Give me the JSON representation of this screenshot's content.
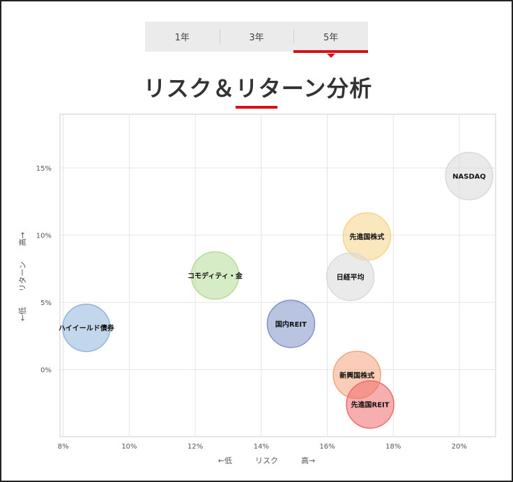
{
  "tabs": [
    {
      "label": "1年",
      "active": false
    },
    {
      "label": "3年",
      "active": false
    },
    {
      "label": "5年",
      "active": true
    }
  ],
  "title": "リスク＆リターン分析",
  "colors": {
    "accent": "#d9101a"
  },
  "chart_data": {
    "type": "scatter",
    "x": {
      "label": "←低　　　リスク　　　高→",
      "ticks": [
        "8%",
        "10%",
        "12%",
        "14%",
        "16%",
        "18%",
        "20%"
      ],
      "range": [
        7.9,
        21.1
      ]
    },
    "y": {
      "label": "←低　　リターン　　高→",
      "ticks": [
        "0%",
        "5%",
        "10%",
        "15%"
      ],
      "range": [
        -5.0,
        19.0
      ]
    },
    "grid": true,
    "points": [
      {
        "name": "NASDAQ",
        "x": 20.3,
        "y": 14.4,
        "color": "#d9d9d9"
      },
      {
        "name": "先進国株式",
        "x": 17.2,
        "y": 9.9,
        "color": "#f7d488"
      },
      {
        "name": "日経平均",
        "x": 16.7,
        "y": 6.9,
        "color": "#d9d9d9"
      },
      {
        "name": "コモディティ・金",
        "x": 12.6,
        "y": 7.0,
        "color": "#b3dc98"
      },
      {
        "name": "国内REIT",
        "x": 14.9,
        "y": 3.4,
        "color": "#7f93c8"
      },
      {
        "name": "ハイイールド債券",
        "x": 8.7,
        "y": 3.1,
        "color": "#8fb4dc"
      },
      {
        "name": "新興国株式",
        "x": 16.9,
        "y": -0.4,
        "color": "#f4a47e"
      },
      {
        "name": "先進国REIT",
        "x": 17.3,
        "y": -2.6,
        "color": "#ef6b6b"
      }
    ]
  }
}
